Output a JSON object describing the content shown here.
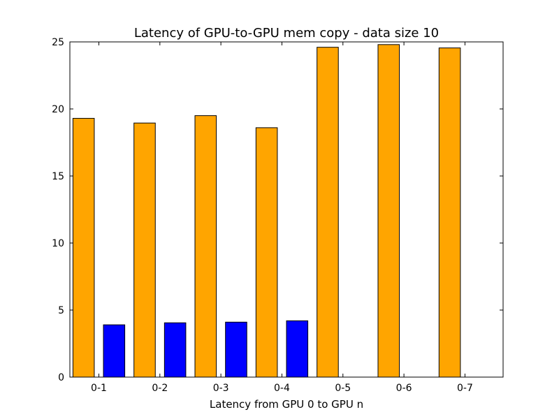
{
  "chart_data": {
    "type": "bar",
    "title": "Latency of GPU-to-GPU mem copy - data size 10",
    "xlabel": "Latency from GPU 0 to GPU n",
    "ylabel": "",
    "ylim": [
      0,
      25
    ],
    "yticks": [
      0,
      5,
      10,
      15,
      20,
      25
    ],
    "grid": false,
    "legend": "none",
    "categories": [
      "0-1",
      "0-2",
      "0-3",
      "0-4",
      "0-5",
      "0-6",
      "0-7"
    ],
    "series": [
      {
        "color": "#ffa500",
        "values": [
          19.3,
          18.95,
          19.5,
          18.6,
          24.6,
          24.8,
          24.55
        ]
      },
      {
        "color": "#0000ff",
        "values": [
          3.9,
          4.05,
          4.1,
          4.2,
          0,
          0,
          0
        ]
      }
    ]
  }
}
